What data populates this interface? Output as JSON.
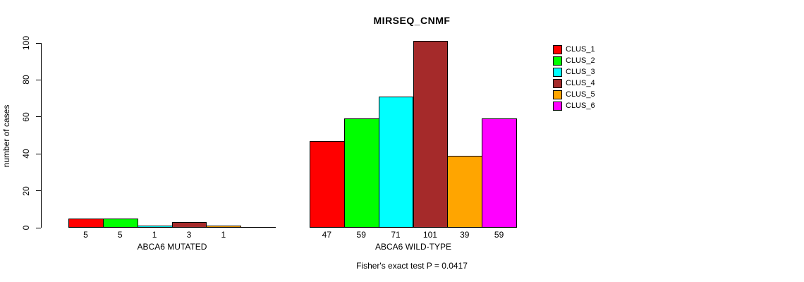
{
  "chart_data": {
    "type": "bar",
    "title": "MIRSEQ_CNMF",
    "ylabel": "number of cases",
    "ylim": [
      0,
      100
    ],
    "yticks": [
      0,
      20,
      40,
      60,
      80,
      100
    ],
    "grid": false,
    "legend_position": "right",
    "legend": [
      {
        "label": "CLUS_1",
        "color": "#FF0000"
      },
      {
        "label": "CLUS_2",
        "color": "#00FF00"
      },
      {
        "label": "CLUS_3",
        "color": "#00FFFF"
      },
      {
        "label": "CLUS_4",
        "color": "#A52A2A"
      },
      {
        "label": "CLUS_5",
        "color": "#FFA500"
      },
      {
        "label": "CLUS_6",
        "color": "#FF00FF"
      }
    ],
    "series_colors": [
      "#FF0000",
      "#00FF00",
      "#00FFFF",
      "#A52A2A",
      "#FFA500",
      "#FF00FF"
    ],
    "groups": [
      {
        "label": "ABCA6 MUTATED",
        "values": [
          5,
          5,
          1,
          3,
          1,
          0
        ],
        "bar_labels": [
          "5",
          "5",
          "1",
          "3",
          "1",
          ""
        ]
      },
      {
        "label": "ABCA6 WILD-TYPE",
        "values": [
          47,
          59,
          71,
          101,
          39,
          59
        ],
        "bar_labels": [
          "47",
          "59",
          "71",
          "101",
          "39",
          "59"
        ]
      }
    ],
    "annotation": "Fisher's exact test P = 0.0417"
  }
}
